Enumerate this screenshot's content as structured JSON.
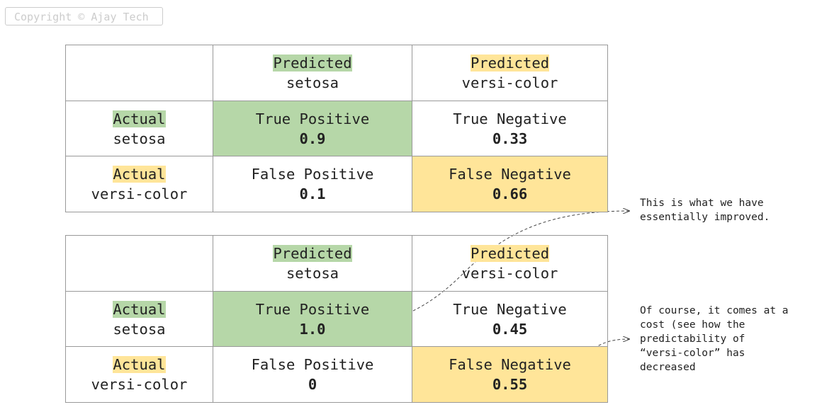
{
  "header": {
    "copyright": "Copyright © Ajay Tech"
  },
  "tables": [
    {
      "header": [
        {
          "label": "Predicted",
          "class": "setosa"
        },
        {
          "label": "Predicted",
          "class": "versi-color"
        }
      ],
      "rows": [
        {
          "label": "Actual",
          "class": "setosa",
          "cells": [
            {
              "name": "True Positive",
              "value": "0.9"
            },
            {
              "name": "True Negative",
              "value": "0.33"
            }
          ]
        },
        {
          "label": "Actual",
          "class": "versi-color",
          "cells": [
            {
              "name": "False Positive",
              "value": "0.1"
            },
            {
              "name": "False Negative",
              "value": "0.66"
            }
          ]
        }
      ]
    },
    {
      "header": [
        {
          "label": "Predicted",
          "class": "setosa"
        },
        {
          "label": "Predicted",
          "class": "versi-color"
        }
      ],
      "rows": [
        {
          "label": "Actual",
          "class": "setosa",
          "cells": [
            {
              "name": "True Positive",
              "value": "1.0"
            },
            {
              "name": "True Negative",
              "value": "0.45"
            }
          ]
        },
        {
          "label": "Actual",
          "class": "versi-color",
          "cells": [
            {
              "name": "False Positive",
              "value": "0"
            },
            {
              "name": "False Negative",
              "value": "0.55"
            }
          ]
        }
      ]
    }
  ],
  "notes": [
    {
      "lines": [
        "This is what we have",
        "essentially improved."
      ]
    },
    {
      "lines": [
        "Of course, it comes at a",
        "cost (see how the",
        "predictability of",
        "“versi-color” has",
        "decreased"
      ]
    }
  ]
}
